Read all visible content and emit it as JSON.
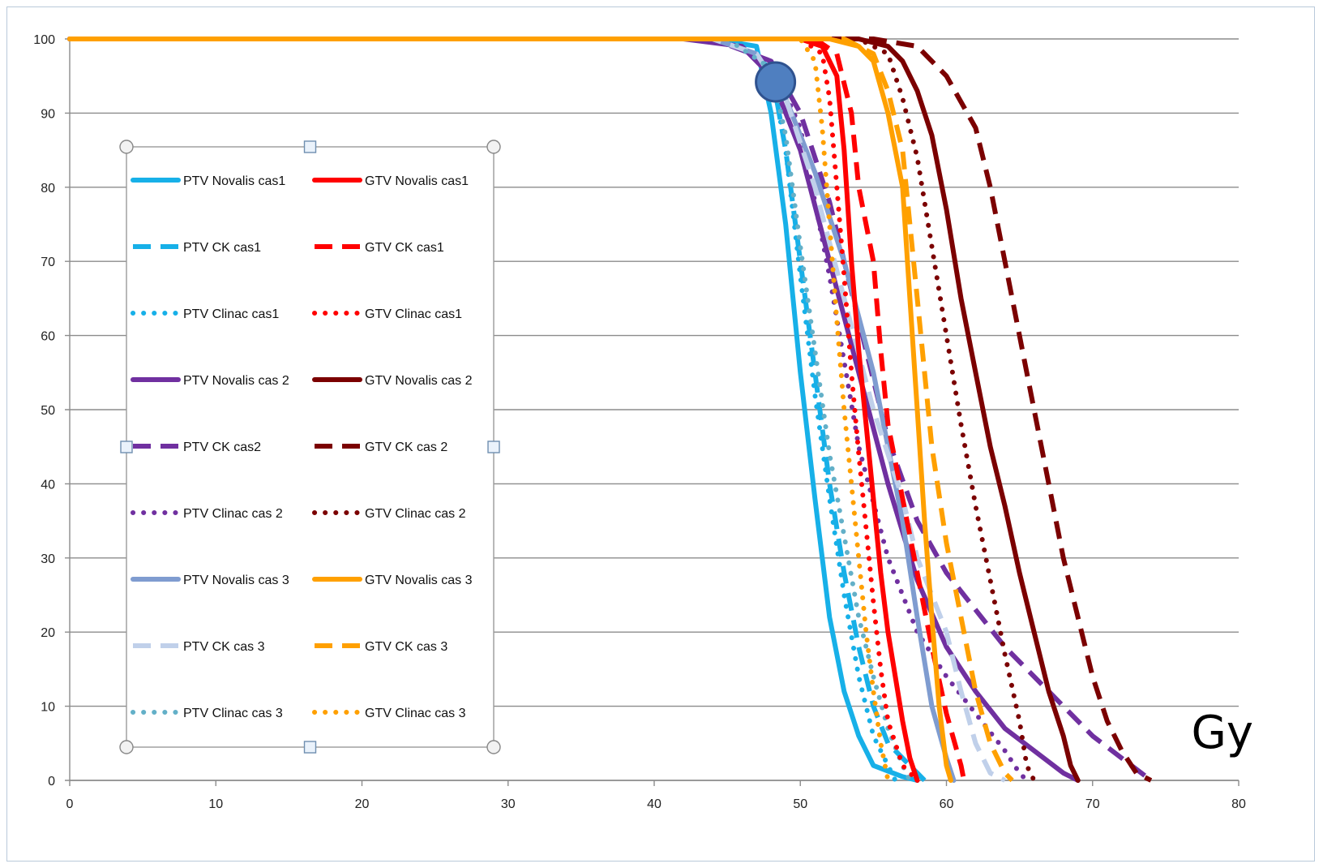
{
  "chart_data": {
    "type": "line",
    "xlim": [
      0,
      80
    ],
    "ylim": [
      0,
      100
    ],
    "x_ticks": [
      "0",
      "10",
      "20",
      "30",
      "40",
      "50",
      "60",
      "70",
      "80"
    ],
    "y_ticks": [
      "0",
      "10",
      "20",
      "30",
      "40",
      "50",
      "60",
      "70",
      "80",
      "90",
      "100"
    ],
    "unit_label": "Gy",
    "grid": "horizontal",
    "legend_position": "left",
    "series": [
      {
        "name": "PTV Novalis cas1",
        "color": "#17b0e8",
        "dash": "solid",
        "points": [
          [
            0,
            100
          ],
          [
            44,
            100
          ],
          [
            47,
            99
          ],
          [
            48,
            90
          ],
          [
            49,
            75
          ],
          [
            50,
            55
          ],
          [
            51,
            38
          ],
          [
            52,
            22
          ],
          [
            53,
            12
          ],
          [
            54,
            6
          ],
          [
            55,
            2
          ],
          [
            57,
            0.5
          ],
          [
            58,
            0
          ]
        ]
      },
      {
        "name": "PTV CK cas1",
        "color": "#17b0e8",
        "dash": "dashed",
        "points": [
          [
            0,
            100
          ],
          [
            45,
            100
          ],
          [
            48,
            96
          ],
          [
            49,
            85
          ],
          [
            50,
            70
          ],
          [
            51,
            55
          ],
          [
            52,
            40
          ],
          [
            53,
            28
          ],
          [
            54,
            18
          ],
          [
            55,
            10
          ],
          [
            56,
            5
          ],
          [
            57,
            3
          ],
          [
            58,
            1
          ],
          [
            58.5,
            0
          ]
        ]
      },
      {
        "name": "PTV Clinac cas1",
        "color": "#17b0e8",
        "dash": "dotted",
        "points": [
          [
            0,
            100
          ],
          [
            45,
            100
          ],
          [
            48,
            96
          ],
          [
            49,
            85
          ],
          [
            50,
            68
          ],
          [
            51,
            52
          ],
          [
            52,
            38
          ],
          [
            53,
            25
          ],
          [
            54,
            14
          ],
          [
            55,
            6
          ],
          [
            56,
            2
          ],
          [
            56.5,
            0
          ]
        ]
      },
      {
        "name": "PTV Novalis cas 2",
        "color": "#7030a0",
        "dash": "solid",
        "points": [
          [
            0,
            100
          ],
          [
            42,
            100
          ],
          [
            46,
            99
          ],
          [
            48,
            95
          ],
          [
            50,
            85
          ],
          [
            52,
            70
          ],
          [
            54,
            55
          ],
          [
            56,
            40
          ],
          [
            58,
            27
          ],
          [
            60,
            18
          ],
          [
            62,
            12
          ],
          [
            64,
            7
          ],
          [
            66,
            4
          ],
          [
            68,
            1
          ],
          [
            69,
            0
          ]
        ]
      },
      {
        "name": "PTV CK cas2",
        "color": "#7030a0",
        "dash": "dashed",
        "points": [
          [
            0,
            100
          ],
          [
            44,
            100
          ],
          [
            48,
            97
          ],
          [
            50,
            90
          ],
          [
            52,
            78
          ],
          [
            54,
            62
          ],
          [
            56,
            46
          ],
          [
            58,
            35
          ],
          [
            60,
            28
          ],
          [
            62,
            23
          ],
          [
            64,
            18
          ],
          [
            66,
            14
          ],
          [
            68,
            10
          ],
          [
            70,
            6
          ],
          [
            72,
            3
          ],
          [
            74,
            0
          ]
        ]
      },
      {
        "name": "PTV Clinac cas 2",
        "color": "#7030a0",
        "dash": "dotted",
        "points": [
          [
            0,
            100
          ],
          [
            44,
            100
          ],
          [
            48,
            97
          ],
          [
            50,
            88
          ],
          [
            52,
            68
          ],
          [
            54,
            45
          ],
          [
            56,
            30
          ],
          [
            58,
            20
          ],
          [
            60,
            14
          ],
          [
            62,
            9
          ],
          [
            64,
            4
          ],
          [
            65,
            1
          ],
          [
            65.5,
            0
          ]
        ]
      },
      {
        "name": "PTV Novalis cas 3",
        "color": "#7f9cd0",
        "dash": "solid",
        "points": [
          [
            0,
            100
          ],
          [
            44,
            100
          ],
          [
            47,
            98
          ],
          [
            49,
            92
          ],
          [
            51,
            82
          ],
          [
            53,
            70
          ],
          [
            55,
            55
          ],
          [
            56,
            45
          ],
          [
            57,
            35
          ],
          [
            58,
            22
          ],
          [
            59,
            10
          ],
          [
            60,
            3
          ],
          [
            60.5,
            0
          ]
        ]
      },
      {
        "name": "PTV CK cas 3",
        "color": "#c0d0ea",
        "dash": "dashed",
        "points": [
          [
            0,
            100
          ],
          [
            44,
            100
          ],
          [
            47,
            98
          ],
          [
            49,
            92
          ],
          [
            51,
            80
          ],
          [
            53,
            65
          ],
          [
            55,
            50
          ],
          [
            57,
            38
          ],
          [
            58,
            30
          ],
          [
            60,
            20
          ],
          [
            61,
            12
          ],
          [
            62,
            5
          ],
          [
            63,
            1
          ],
          [
            64,
            0
          ]
        ]
      },
      {
        "name": "PTV Clinac cas 3",
        "color": "#63b0c8",
        "dash": "dotted",
        "points": [
          [
            0,
            100
          ],
          [
            45,
            100
          ],
          [
            48,
            96
          ],
          [
            49,
            87
          ],
          [
            50,
            72
          ],
          [
            51,
            58
          ],
          [
            52,
            44
          ],
          [
            53,
            33
          ],
          [
            54,
            22
          ],
          [
            55,
            14
          ],
          [
            56,
            7
          ],
          [
            57,
            2
          ],
          [
            57.5,
            0
          ]
        ]
      },
      {
        "name": "GTV Novalis cas1",
        "color": "#ff0000",
        "dash": "solid",
        "points": [
          [
            0,
            100
          ],
          [
            50,
            100
          ],
          [
            51.5,
            99
          ],
          [
            52.5,
            95
          ],
          [
            53,
            85
          ],
          [
            53.5,
            70
          ],
          [
            54,
            58
          ],
          [
            54.5,
            48
          ],
          [
            55,
            38
          ],
          [
            55.5,
            28
          ],
          [
            56,
            20
          ],
          [
            56.5,
            14
          ],
          [
            57,
            8
          ],
          [
            57.5,
            3
          ],
          [
            58,
            0
          ]
        ]
      },
      {
        "name": "GTV CK cas1",
        "color": "#ff0000",
        "dash": "dashed",
        "points": [
          [
            0,
            100
          ],
          [
            51,
            100
          ],
          [
            52.5,
            98
          ],
          [
            53.5,
            90
          ],
          [
            54,
            80
          ],
          [
            55,
            70
          ],
          [
            55.5,
            58
          ],
          [
            56,
            48
          ],
          [
            57,
            38
          ],
          [
            58,
            28
          ],
          [
            59,
            18
          ],
          [
            60,
            9
          ],
          [
            61,
            2
          ],
          [
            61.2,
            0
          ]
        ]
      },
      {
        "name": "GTV Clinac cas1",
        "color": "#ff0000",
        "dash": "dotted",
        "points": [
          [
            0,
            100
          ],
          [
            50,
            100
          ],
          [
            51.5,
            98
          ],
          [
            52,
            92
          ],
          [
            52.5,
            80
          ],
          [
            53,
            68
          ],
          [
            53.5,
            55
          ],
          [
            54,
            44
          ],
          [
            54.5,
            34
          ],
          [
            55,
            24
          ],
          [
            55.5,
            15
          ],
          [
            56,
            8
          ],
          [
            57,
            2
          ],
          [
            58,
            0
          ]
        ]
      },
      {
        "name": "GTV Novalis cas 2",
        "color": "#7b0000",
        "dash": "solid",
        "points": [
          [
            0,
            100
          ],
          [
            54,
            100
          ],
          [
            56,
            99
          ],
          [
            57,
            97
          ],
          [
            58,
            93
          ],
          [
            59,
            87
          ],
          [
            60,
            77
          ],
          [
            61,
            65
          ],
          [
            62,
            55
          ],
          [
            63,
            45
          ],
          [
            64,
            37
          ],
          [
            65,
            28
          ],
          [
            66,
            20
          ],
          [
            67,
            12
          ],
          [
            68,
            6
          ],
          [
            68.5,
            2
          ],
          [
            69,
            0
          ]
        ]
      },
      {
        "name": "GTV CK cas 2",
        "color": "#7b0000",
        "dash": "dashed",
        "points": [
          [
            0,
            100
          ],
          [
            55,
            100
          ],
          [
            58,
            99
          ],
          [
            60,
            95
          ],
          [
            62,
            88
          ],
          [
            63,
            80
          ],
          [
            64,
            70
          ],
          [
            65,
            60
          ],
          [
            66,
            50
          ],
          [
            67,
            40
          ],
          [
            68,
            30
          ],
          [
            69,
            22
          ],
          [
            70,
            14
          ],
          [
            71,
            8
          ],
          [
            72,
            4
          ],
          [
            73,
            1
          ],
          [
            74,
            0
          ]
        ]
      },
      {
        "name": "GTV Clinac cas 2",
        "color": "#7b0000",
        "dash": "dotted",
        "points": [
          [
            0,
            100
          ],
          [
            54,
            100
          ],
          [
            56,
            98
          ],
          [
            57,
            92
          ],
          [
            58,
            84
          ],
          [
            59,
            72
          ],
          [
            60,
            60
          ],
          [
            61,
            48
          ],
          [
            62,
            37
          ],
          [
            63,
            27
          ],
          [
            64,
            17
          ],
          [
            65,
            8
          ],
          [
            65.5,
            2
          ],
          [
            66,
            0
          ]
        ]
      },
      {
        "name": "GTV Novalis cas 3",
        "color": "#ffa000",
        "dash": "solid",
        "points": [
          [
            0,
            100
          ],
          [
            52,
            100
          ],
          [
            54,
            99
          ],
          [
            55,
            97
          ],
          [
            56,
            90
          ],
          [
            57,
            80
          ],
          [
            57.5,
            65
          ],
          [
            58,
            50
          ],
          [
            58.5,
            35
          ],
          [
            59,
            22
          ],
          [
            59.5,
            10
          ],
          [
            60,
            2
          ],
          [
            60.3,
            0
          ]
        ]
      },
      {
        "name": "GTV CK cas 3",
        "color": "#ffa000",
        "dash": "dashed",
        "points": [
          [
            0,
            100
          ],
          [
            53,
            100
          ],
          [
            55,
            98
          ],
          [
            56,
            93
          ],
          [
            57,
            85
          ],
          [
            57.5,
            75
          ],
          [
            58,
            65
          ],
          [
            58.5,
            55
          ],
          [
            59,
            45
          ],
          [
            60,
            32
          ],
          [
            61,
            22
          ],
          [
            62,
            12
          ],
          [
            63,
            5
          ],
          [
            64,
            1
          ],
          [
            64.5,
            0
          ]
        ]
      },
      {
        "name": "GTV Clinac cas 3",
        "color": "#ffa000",
        "dash": "dotted",
        "points": [
          [
            0,
            100
          ],
          [
            50,
            100
          ],
          [
            51,
            97
          ],
          [
            51.5,
            88
          ],
          [
            52,
            75
          ],
          [
            52.5,
            62
          ],
          [
            53,
            50
          ],
          [
            53.5,
            40
          ],
          [
            54,
            30
          ],
          [
            54.5,
            20
          ],
          [
            55,
            12
          ],
          [
            55.5,
            5
          ],
          [
            56,
            0
          ]
        ]
      }
    ]
  }
}
